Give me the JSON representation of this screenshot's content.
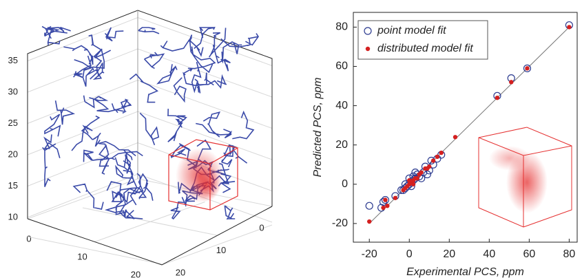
{
  "chart_data": [
    {
      "type": "3d",
      "xticks": [
        0,
        10,
        20
      ],
      "yticks": [
        0,
        10,
        20
      ],
      "zticks": [
        10,
        15,
        20,
        25,
        30,
        35
      ],
      "zlim": [
        9,
        36
      ],
      "grid": true,
      "line_color": "#3a4aa8",
      "box_color": "#e53030"
    },
    {
      "type": "scatter",
      "xlabel": "Experimental PCS, ppm",
      "ylabel": "Predicted PCS, ppm",
      "xlim": [
        -28,
        84
      ],
      "ylim": [
        -29.5,
        87.5
      ],
      "xticks": [
        -20,
        0,
        20,
        40,
        60,
        80
      ],
      "yticks": [
        -20,
        0,
        20,
        40,
        60,
        80
      ],
      "legend": "upper left",
      "fit_line": {
        "x": [
          -20,
          80
        ],
        "y": [
          -20,
          80
        ],
        "color": "#777"
      },
      "series": [
        {
          "name": "point model fit",
          "color": "#2b3a8f",
          "marker": "open",
          "x": [
            80,
            59,
            51,
            44,
            16,
            12,
            10,
            8,
            7,
            5,
            4,
            3,
            2,
            1,
            0,
            -1,
            -2,
            -3,
            -4,
            2,
            3,
            1,
            0,
            -2,
            6,
            9,
            11,
            14,
            -12,
            -13,
            -14,
            -20,
            -7
          ],
          "y": [
            81,
            59,
            54,
            45,
            15,
            10,
            7,
            9,
            6,
            4,
            5,
            3,
            2,
            1,
            0,
            -1,
            -2,
            -3,
            -3,
            4,
            6,
            -1,
            3,
            0,
            3,
            5,
            12,
            13,
            -8,
            -9,
            -12,
            -11,
            -6
          ]
        },
        {
          "name": "distributed model fit",
          "color": "#d42020",
          "marker": "filled",
          "x": [
            80,
            59,
            51,
            44,
            23,
            16,
            12,
            10,
            8,
            6,
            5,
            3,
            2,
            1,
            0,
            -1,
            -2,
            -3,
            4,
            0,
            2,
            9,
            14,
            -7,
            -11,
            -13,
            -20,
            -12
          ],
          "y": [
            80,
            59,
            52,
            44,
            24,
            16,
            12,
            9,
            8,
            6,
            5,
            3,
            2,
            1,
            0,
            -1,
            -2,
            -3,
            3,
            2,
            0,
            8,
            14,
            -7,
            -11,
            -12,
            -19,
            -8
          ]
        }
      ]
    }
  ]
}
